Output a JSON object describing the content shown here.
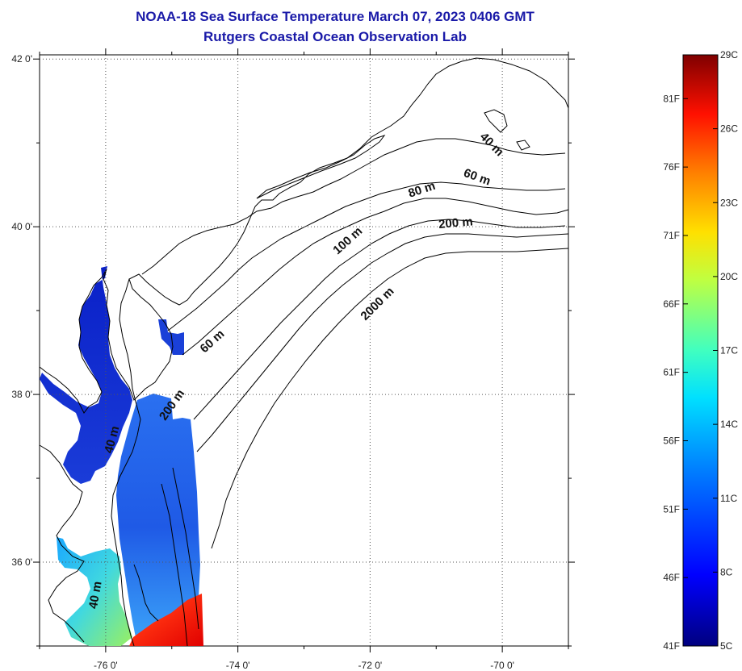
{
  "title": "NOAA-18 Sea Surface Temperature March 07, 2023 0406 GMT",
  "subtitle": "Rutgers Coastal Ocean Observation Lab",
  "map": {
    "lat_ticks": [
      {
        "value": 42,
        "label": "42 0'"
      },
      {
        "value": 40,
        "label": "40 0'"
      },
      {
        "value": 38,
        "label": "38 0'"
      },
      {
        "value": 36,
        "label": "36 0'"
      }
    ],
    "lon_ticks": [
      {
        "value": -76,
        "label": "-76 0'"
      },
      {
        "value": -74,
        "label": "-74 0'"
      },
      {
        "value": -72,
        "label": "-72 0'"
      },
      {
        "value": -70,
        "label": "-70 0'"
      }
    ],
    "lat_range": [
      35,
      42.05
    ],
    "lon_range": [
      -77,
      -69
    ]
  },
  "contour_labels": [
    {
      "text": "40 m",
      "lon": -70.2,
      "lat": 40.95,
      "rotate": 45
    },
    {
      "text": "60 m",
      "lon": -70.4,
      "lat": 40.55,
      "rotate": 20
    },
    {
      "text": "80 m",
      "lon": -71.2,
      "lat": 40.4,
      "rotate": -18
    },
    {
      "text": "200 m",
      "lon": -70.7,
      "lat": 40.0,
      "rotate": -5
    },
    {
      "text": "100 m",
      "lon": -72.3,
      "lat": 39.8,
      "rotate": -42
    },
    {
      "text": "2000 m",
      "lon": -71.85,
      "lat": 39.05,
      "rotate": -45
    },
    {
      "text": "60 m",
      "lon": -74.35,
      "lat": 38.6,
      "rotate": -42
    },
    {
      "text": "200 m",
      "lon": -74.95,
      "lat": 37.85,
      "rotate": -55
    },
    {
      "text": "40 m",
      "lon": -75.85,
      "lat": 37.45,
      "rotate": -75
    },
    {
      "text": "40 m",
      "lon": -76.1,
      "lat": 35.6,
      "rotate": -80
    }
  ],
  "colorbar": {
    "celsius": [
      {
        "value": 29,
        "label": "29C"
      },
      {
        "value": 26,
        "label": "26C"
      },
      {
        "value": 23,
        "label": "23C"
      },
      {
        "value": 20,
        "label": "20C"
      },
      {
        "value": 17,
        "label": "17C"
      },
      {
        "value": 14,
        "label": "14C"
      },
      {
        "value": 11,
        "label": "11C"
      },
      {
        "value": 8,
        "label": "8C"
      },
      {
        "value": 5,
        "label": "5C"
      }
    ],
    "fahrenheit": [
      {
        "value": 81,
        "label": "81F"
      },
      {
        "value": 76,
        "label": "76F"
      },
      {
        "value": 71,
        "label": "71F"
      },
      {
        "value": 66,
        "label": "66F"
      },
      {
        "value": 61,
        "label": "61F"
      },
      {
        "value": 56,
        "label": "56F"
      },
      {
        "value": 51,
        "label": "51F"
      },
      {
        "value": 46,
        "label": "46F"
      },
      {
        "value": 41,
        "label": "41F"
      }
    ],
    "range_c": [
      5,
      29
    ],
    "colors": [
      "#00007f",
      "#0000ff",
      "#0080ff",
      "#00ffff",
      "#80ff80",
      "#ffff00",
      "#ff8000",
      "#ff0000",
      "#7f0000"
    ]
  },
  "colors": {
    "title": "#1a1aa8",
    "gridline": "#555555",
    "coast": "#000000"
  }
}
